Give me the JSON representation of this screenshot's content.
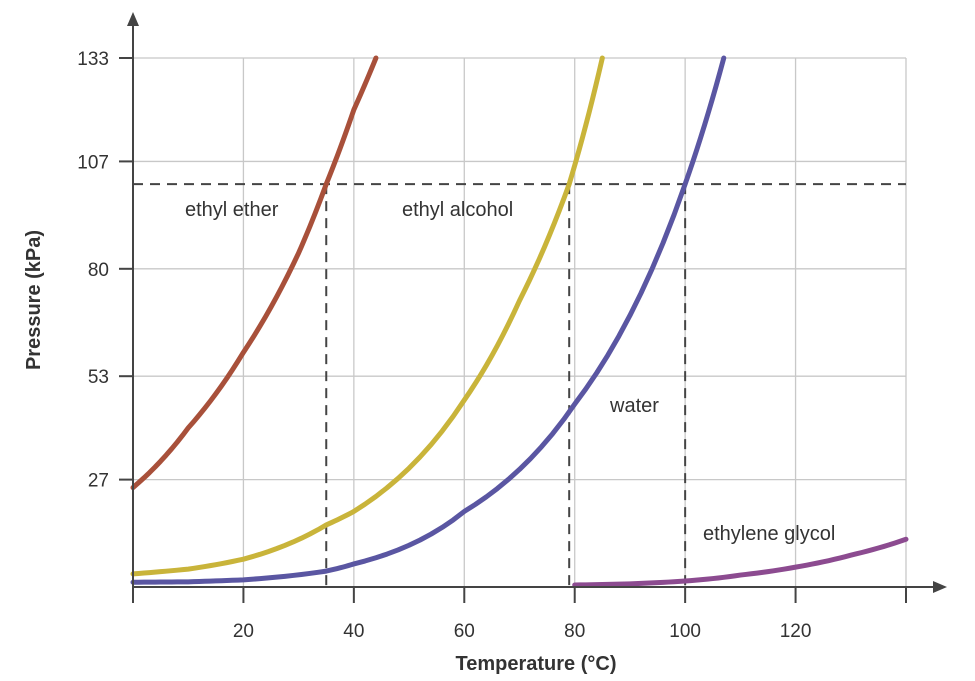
{
  "chart_data": {
    "type": "line",
    "title": "",
    "xlabel": "Temperature (°C)",
    "ylabel": "Pressure (kPa)",
    "xlim": [
      0,
      140
    ],
    "ylim": [
      0,
      133
    ],
    "x_ticks": [
      20,
      40,
      60,
      80,
      100,
      120
    ],
    "y_ticks": [
      27,
      53,
      80,
      107,
      133
    ],
    "grid": true,
    "reference_pressure": 101.3,
    "reference_temperatures": [
      35,
      79,
      100
    ],
    "series": [
      {
        "name": "ethyl ether",
        "color": "#a8503a",
        "x": [
          0,
          10,
          20,
          30,
          35,
          40,
          44
        ],
        "y": [
          25,
          40,
          59,
          84,
          101.3,
          120,
          133
        ]
      },
      {
        "name": "ethyl alcohol",
        "color": "#c9b43a",
        "x": [
          0,
          10,
          20,
          35,
          40,
          60,
          70,
          79,
          85
        ],
        "y": [
          3.3,
          4.5,
          7,
          15.6,
          19,
          47,
          72,
          101.3,
          133
        ]
      },
      {
        "name": "water",
        "color": "#5a56a2",
        "x": [
          0,
          10,
          20,
          35,
          40,
          60,
          80,
          100,
          107
        ],
        "y": [
          1.2,
          1.3,
          1.8,
          4,
          5.8,
          19,
          46,
          101.3,
          133
        ]
      },
      {
        "name": "ethylene glycol",
        "color": "#8c4b90",
        "x": [
          80,
          90,
          100,
          110,
          120,
          130,
          140
        ],
        "y": [
          0.5,
          0.8,
          1.5,
          3,
          5,
          8,
          12
        ]
      }
    ]
  }
}
